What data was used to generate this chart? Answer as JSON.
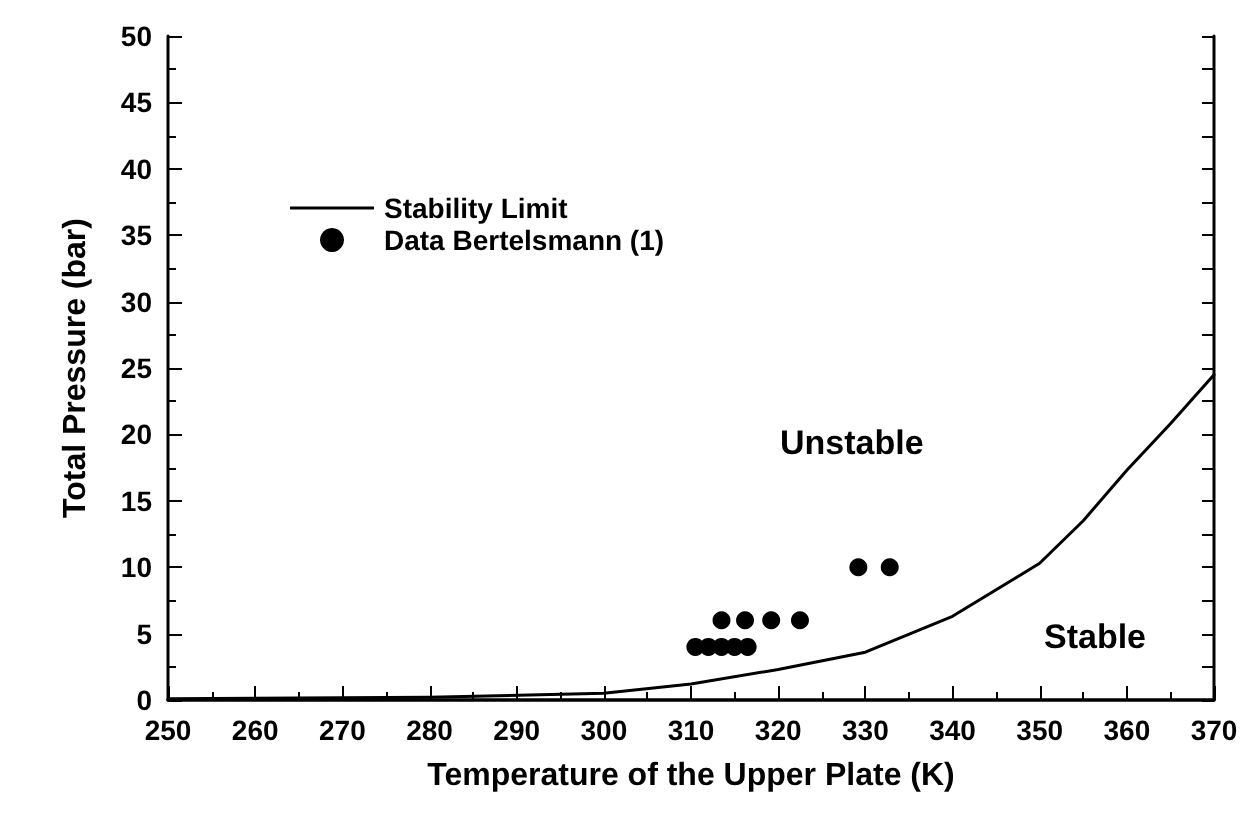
{
  "chart_data": {
    "type": "scatter",
    "xlabel": "Temperature of the Upper Plate (K)",
    "ylabel": "Total Pressure (bar)",
    "xlim": [
      250,
      370
    ],
    "xticks": [
      250,
      260,
      270,
      280,
      290,
      300,
      310,
      320,
      330,
      340,
      350,
      360,
      370
    ],
    "ylim": [
      0,
      50
    ],
    "yticks": [
      0,
      5,
      10,
      15,
      20,
      25,
      30,
      35,
      40,
      45,
      50
    ],
    "grid": false,
    "legend": "top left",
    "series": [
      {
        "name": "Stability Limit",
        "type": "line",
        "color": "#000000",
        "marker": "none",
        "line_style": "solid",
        "x": [
          250,
          280,
          300,
          310,
          320,
          330,
          340,
          350,
          355,
          360,
          365,
          370
        ],
        "values": [
          0.1,
          0.2,
          0.5,
          1.2,
          2.3,
          3.6,
          6.3,
          10.3,
          13.5,
          17.3,
          20.8,
          24.5
        ]
      },
      {
        "name": "Data Bertelsmann (1)",
        "color": "#000000",
        "marker": "circle",
        "x": [
          310.5,
          312,
          313.5,
          315,
          316.5,
          313.5,
          316.2,
          319.2,
          322.5,
          329.2,
          332.8
        ],
        "values": [
          4,
          4,
          4,
          4,
          4,
          6,
          6,
          6,
          6,
          10,
          10
        ]
      }
    ],
    "annotations": [
      "Unstable",
      "Stable"
    ]
  }
}
